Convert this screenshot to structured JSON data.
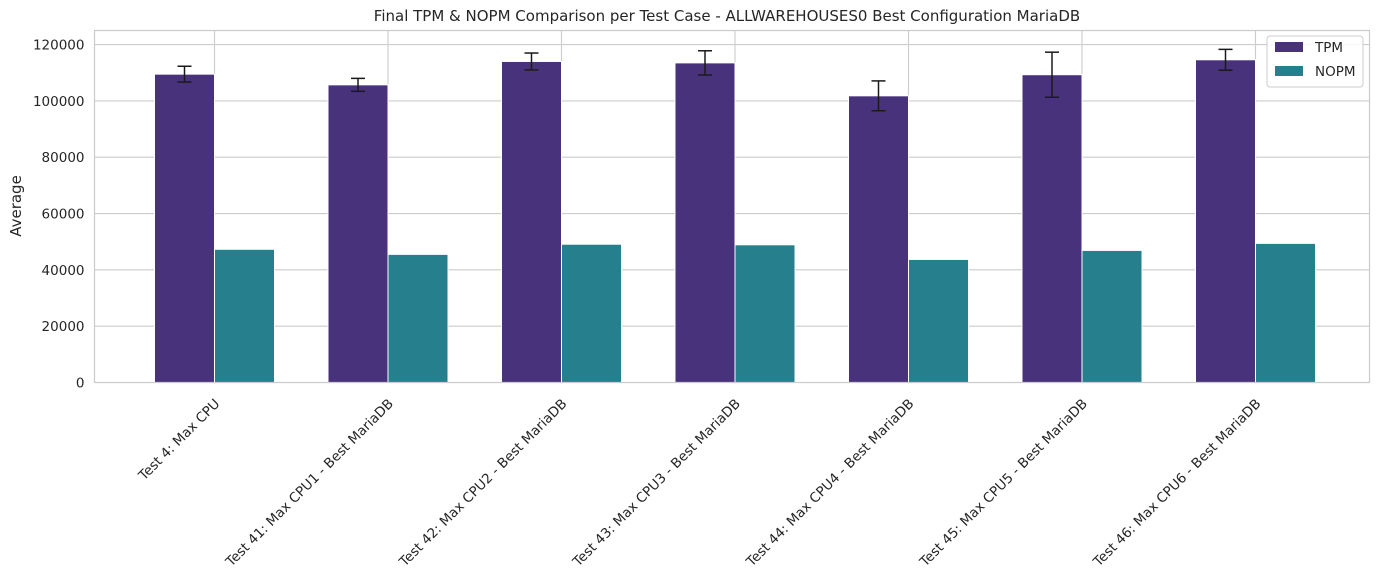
{
  "chart_data": {
    "type": "bar",
    "title": "Final TPM & NOPM Comparison per Test Case - ALLWAREHOUSES0 Best Configuration MariaDB",
    "xlabel": "",
    "ylabel": "Average",
    "ylim": [
      0,
      125000
    ],
    "yticks": [
      "0",
      "20000",
      "40000",
      "60000",
      "80000",
      "100000",
      "120000"
    ],
    "grid": true,
    "legend_position": "top-right",
    "categories": [
      "Test 4: Max CPU",
      "Test 41: Max CPU1 - Best MariaDB",
      "Test 42: Max CPU2 - Best MariaDB",
      "Test 43: Max CPU3 - Best MariaDB",
      "Test 44: Max CPU4 - Best MariaDB",
      "Test 45: Max CPU5 - Best MariaDB",
      "Test 46: Max CPU6 - Best MariaDB"
    ],
    "series": [
      {
        "name": "TPM",
        "color": "#48327c",
        "values": [
          109500,
          105700,
          114000,
          113500,
          101800,
          109300,
          114600
        ],
        "error": [
          2800,
          2300,
          3000,
          4300,
          5300,
          8000,
          3700
        ]
      },
      {
        "name": "NOPM",
        "color": "#267f8d",
        "values": [
          47300,
          45500,
          49100,
          48900,
          43700,
          46900,
          49400
        ]
      }
    ]
  }
}
